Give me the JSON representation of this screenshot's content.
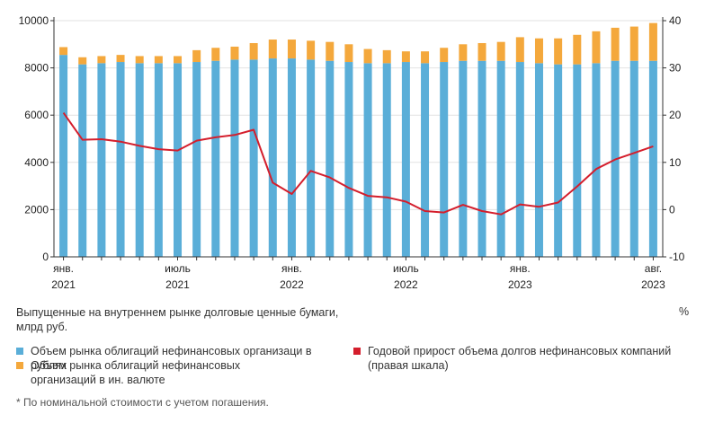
{
  "chart_data": {
    "type": "bar+line",
    "stacked": true,
    "x_ticks": [
      {
        "index": 0,
        "month": "янв.",
        "year": "2021"
      },
      {
        "index": 6,
        "month": "июль",
        "year": "2021"
      },
      {
        "index": 12,
        "month": "янв.",
        "year": "2022"
      },
      {
        "index": 18,
        "month": "июль",
        "year": "2022"
      },
      {
        "index": 24,
        "month": "янв.",
        "year": "2023"
      },
      {
        "index": 31,
        "month": "авг.",
        "year": "2023"
      }
    ],
    "left_axis": {
      "min": 0,
      "max": 10000,
      "ticks": [
        0,
        2000,
        4000,
        6000,
        8000,
        10000
      ]
    },
    "right_axis": {
      "min": -10,
      "max": 40,
      "ticks": [
        -10,
        0,
        10,
        20,
        30,
        40
      ]
    },
    "series": [
      {
        "name": "Объем рынка облигаций нефинансовых организаци в рублях",
        "axis": "left",
        "kind": "bar",
        "color": "#5aaed8",
        "values": [
          8550,
          8150,
          8200,
          8250,
          8200,
          8200,
          8200,
          8250,
          8300,
          8350,
          8350,
          8400,
          8400,
          8350,
          8300,
          8250,
          8200,
          8200,
          8250,
          8200,
          8250,
          8300,
          8300,
          8300,
          8250,
          8200,
          8150,
          8150,
          8200,
          8300,
          8300,
          8300
        ]
      },
      {
        "name": "Объем рынка облигаций нефинансовых организаций в ин. валюте",
        "axis": "left",
        "kind": "bar",
        "color": "#f4a83c",
        "values": [
          330,
          300,
          300,
          300,
          300,
          300,
          300,
          500,
          550,
          550,
          700,
          800,
          800,
          800,
          800,
          750,
          600,
          550,
          450,
          500,
          600,
          700,
          750,
          800,
          1050,
          1050,
          1100,
          1250,
          1350,
          1400,
          1450,
          1600
        ]
      },
      {
        "name": "Годовой прирост объема долгов нефинансовых компаний (правая шкала)",
        "axis": "right",
        "kind": "line",
        "color": "#d41e2c",
        "values": [
          20.5,
          14.8,
          14.9,
          14.4,
          13.5,
          12.8,
          12.5,
          14.6,
          15.3,
          15.8,
          16.9,
          5.7,
          3.3,
          8.2,
          6.8,
          4.6,
          2.9,
          2.6,
          1.7,
          -0.3,
          -0.6,
          1.0,
          -0.3,
          -1.0,
          1.1,
          0.6,
          1.5,
          4.9,
          8.6,
          10.6,
          12.0,
          13.4
        ]
      }
    ]
  },
  "captions": {
    "left_axis_label": "Выпущенные на внутреннем рынке долговые ценные бумаги, млрд руб.",
    "right_axis_label": "%"
  },
  "legend": {
    "item1": "Объем рынка облигаций нефинансовых организаци в рублях",
    "item2": "Объем рынка облигаций нефинансовых организаций в ин. валюте",
    "item3": "Годовой прирост объема долгов нефинансовых компаний (правая шкала)"
  },
  "footnote": "* По номинальной стоимости с учетом погашения."
}
